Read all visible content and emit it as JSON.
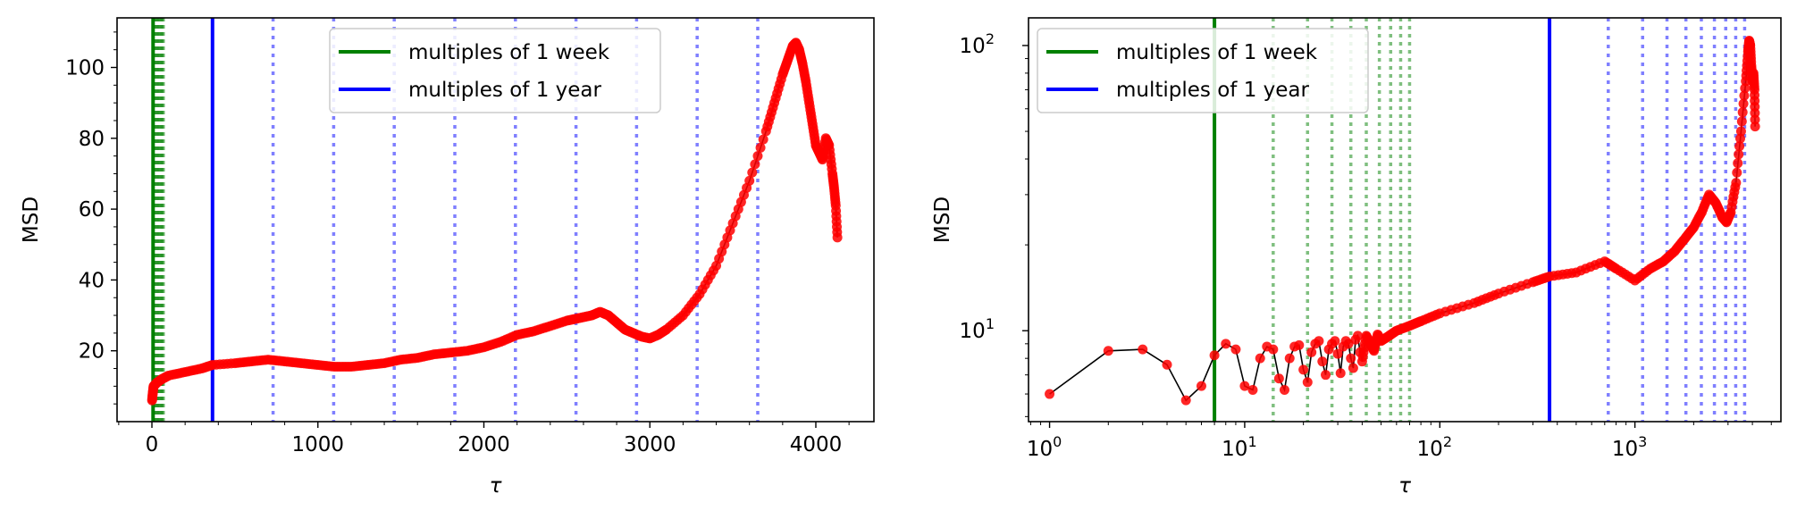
{
  "chart_data": [
    {
      "type": "line",
      "panel": "left",
      "xscale": "linear",
      "yscale": "linear",
      "xlabel": "τ",
      "ylabel": "MSD",
      "xlim": [
        -210,
        4350
      ],
      "ylim": [
        0,
        114
      ],
      "xticks": [
        0,
        1000,
        2000,
        3000,
        4000
      ],
      "xtick_labels": [
        "0",
        "1000",
        "2000",
        "3000",
        "4000"
      ],
      "yticks": [
        20,
        40,
        60,
        80,
        100
      ],
      "ytick_labels": [
        "20",
        "40",
        "60",
        "80",
        "100"
      ],
      "grid": false,
      "legend": {
        "placement": "top-center",
        "entries": [
          {
            "label": "multiples of 1 week",
            "color": "#008000"
          },
          {
            "label": "multiples of 1 year",
            "color": "#0000ff"
          }
        ]
      },
      "week_solid": 7,
      "week_dotted_range": [
        14,
        70
      ],
      "year_solid": 365,
      "year_dotted": [
        730,
        1095,
        1460,
        1825,
        2190,
        2555,
        2920,
        3285,
        3650
      ],
      "series": [
        {
          "marker_color": "#ff0000",
          "line_color": "#000000",
          "x": [
            1,
            5,
            10,
            30,
            60,
            100,
            200,
            300,
            365,
            500,
            600,
            700,
            800,
            900,
            1000,
            1100,
            1200,
            1300,
            1400,
            1500,
            1600,
            1700,
            1800,
            1900,
            2000,
            2100,
            2200,
            2300,
            2400,
            2500,
            2550,
            2600,
            2650,
            2700,
            2750,
            2800,
            2850,
            2900,
            2950,
            3000,
            3050,
            3100,
            3200,
            3300,
            3400,
            3500,
            3600,
            3700,
            3750,
            3800,
            3830,
            3860,
            3880,
            3900,
            3920,
            3940,
            3960,
            3980,
            4000,
            4020,
            4040,
            4060,
            4080,
            4100,
            4110,
            4120,
            4130
          ],
          "y": [
            6,
            8,
            10,
            11,
            12,
            13,
            14,
            15,
            16,
            16.5,
            17,
            17.5,
            17,
            16.5,
            16,
            15.5,
            15.5,
            16,
            16.5,
            17.5,
            18,
            19,
            19.5,
            20,
            21,
            22.5,
            24.5,
            25.5,
            27,
            28.5,
            29,
            29.5,
            30,
            31,
            30,
            28,
            26,
            25,
            24,
            23.5,
            24.5,
            26,
            30,
            36,
            44,
            56,
            68,
            82,
            90,
            98,
            102,
            106,
            107,
            105,
            101,
            96,
            90,
            84,
            78,
            76,
            74,
            80,
            78,
            70,
            66,
            61,
            52
          ]
        }
      ]
    },
    {
      "type": "line",
      "panel": "right",
      "xscale": "log",
      "yscale": "log",
      "xlabel": "τ",
      "ylabel": "MSD",
      "xlim": [
        0.78,
        5600
      ],
      "ylim": [
        4.8,
        125
      ],
      "xticks": [
        1,
        10,
        100,
        1000
      ],
      "xtick_labels": [
        {
          "base": "10",
          "exp": "0"
        },
        {
          "base": "10",
          "exp": "1"
        },
        {
          "base": "10",
          "exp": "2"
        },
        {
          "base": "10",
          "exp": "3"
        }
      ],
      "yticks": [
        10,
        100
      ],
      "ytick_labels": [
        {
          "base": "10",
          "exp": "1"
        },
        {
          "base": "10",
          "exp": "2"
        }
      ],
      "grid": false,
      "legend": {
        "placement": "top-left",
        "entries": [
          {
            "label": "multiples of 1 week",
            "color": "#008000"
          },
          {
            "label": "multiples of 1 year",
            "color": "#0000ff"
          }
        ]
      },
      "week_solid": 7,
      "week_dotted": [
        14,
        21,
        28,
        35,
        42,
        49,
        56,
        63,
        70
      ],
      "year_solid": 365,
      "year_dotted": [
        730,
        1095,
        1460,
        1825,
        2190,
        2555,
        2920,
        3285,
        3650
      ],
      "series": [
        {
          "marker_color": "#ff0000",
          "line_color": "#000000",
          "x": [
            1,
            2,
            3,
            4,
            5,
            6,
            7,
            8,
            9,
            10,
            11,
            12,
            13,
            14,
            15,
            16,
            17,
            18,
            19,
            20,
            21,
            22,
            23,
            24,
            25,
            26,
            27,
            28,
            29,
            30,
            31,
            32,
            33,
            34,
            35,
            36,
            37,
            38,
            39,
            40,
            42,
            44,
            46,
            48,
            50,
            55,
            60,
            70,
            80,
            100,
            150,
            200,
            300,
            365,
            500,
            700,
            800,
            1000,
            1200,
            1400,
            1600,
            1800,
            2000,
            2200,
            2400,
            2600,
            2800,
            2950,
            3100,
            3300,
            3500,
            3700,
            3800,
            3850,
            3900,
            3950,
            4000,
            4050,
            4100,
            4130
          ],
          "y": [
            6.0,
            8.5,
            8.6,
            7.6,
            5.7,
            6.4,
            8.2,
            9.0,
            8.6,
            6.4,
            6.2,
            8.0,
            8.8,
            8.6,
            6.8,
            6.2,
            8.0,
            8.8,
            8.9,
            7.3,
            6.6,
            8.4,
            9.0,
            9.2,
            7.8,
            7.0,
            8.6,
            9.0,
            9.2,
            8.3,
            7.1,
            8.8,
            9.2,
            9.0,
            8.0,
            7.4,
            9.3,
            9.6,
            8.4,
            7.8,
            9.6,
            9.0,
            8.5,
            9.7,
            9.2,
            9.6,
            10.0,
            10.4,
            10.8,
            11.5,
            12.5,
            13.5,
            14.8,
            15.5,
            16.0,
            17.5,
            16.5,
            15.0,
            16.5,
            17.5,
            19.0,
            21.0,
            23.0,
            26.0,
            30.0,
            28.0,
            25.0,
            24.0,
            26.0,
            33.0,
            50.0,
            75.0,
            95.0,
            104.0,
            100.0,
            85.0,
            75.0,
            80.0,
            70.0,
            52.0
          ]
        }
      ]
    }
  ]
}
